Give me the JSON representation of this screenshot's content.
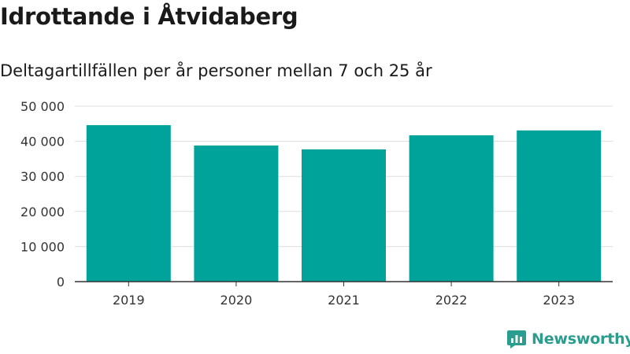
{
  "header": {
    "title": "Idrottande i Åtvidaberg",
    "subtitle": "Deltagartillfällen per år personer mellan 7 och 25 år"
  },
  "chart_data": {
    "type": "bar",
    "categories": [
      "2019",
      "2020",
      "2021",
      "2022",
      "2023"
    ],
    "values": [
      44600,
      38800,
      37700,
      41700,
      43100
    ],
    "ylim": [
      0,
      50000
    ],
    "yticks": [
      0,
      10000,
      20000,
      30000,
      40000,
      50000
    ],
    "ytick_labels": [
      "0",
      "10 000",
      "20 000",
      "30 000",
      "40 000",
      "50 000"
    ],
    "grid": true,
    "bar_color": "#00a39a",
    "grid_color": "#dddddd",
    "axis_color": "#333333"
  },
  "brand": {
    "name": "Newsworthy",
    "icon": "newsworthy-logo-icon",
    "color": "#2a9d8f"
  }
}
